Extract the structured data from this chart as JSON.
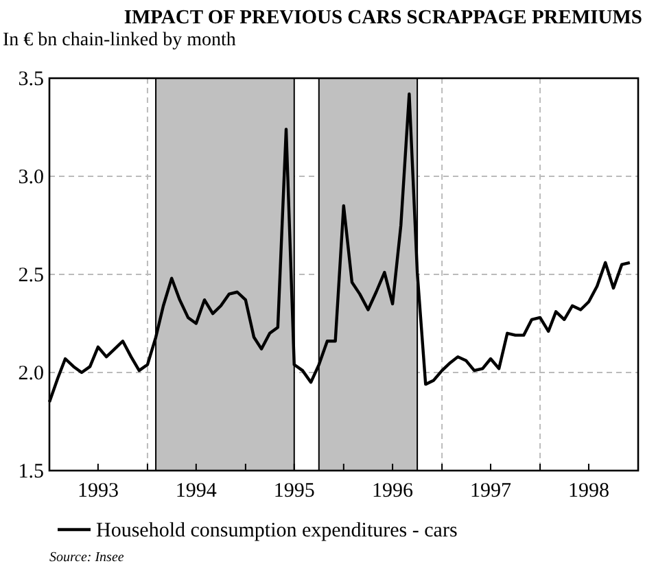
{
  "chart_data": {
    "type": "line",
    "title": "IMPACT OF PREVIOUS CARS SCRAPPAGE PREMIUMS",
    "subtitle": "In € bn chain-linked by month",
    "series": [
      {
        "name": "Household consumption expenditures - cars",
        "color": "#000000",
        "values": [
          1.85,
          1.97,
          2.07,
          2.03,
          2.0,
          2.03,
          2.13,
          2.08,
          2.12,
          2.16,
          2.08,
          2.01,
          2.04,
          2.18,
          2.34,
          2.48,
          2.37,
          2.28,
          2.25,
          2.37,
          2.3,
          2.34,
          2.4,
          2.41,
          2.37,
          2.18,
          2.12,
          2.2,
          2.23,
          3.24,
          2.04,
          2.01,
          1.95,
          2.04,
          2.16,
          2.16,
          2.85,
          2.46,
          2.4,
          2.32,
          2.41,
          2.51,
          2.35,
          2.75,
          3.42,
          2.51,
          1.94,
          1.96,
          2.01,
          2.05,
          2.08,
          2.06,
          2.01,
          2.02,
          2.07,
          2.02,
          2.2,
          2.19,
          2.19,
          2.27,
          2.28,
          2.21,
          2.31,
          2.27,
          2.34,
          2.32,
          2.36,
          2.44,
          2.56,
          2.43,
          2.55,
          2.56
        ]
      }
    ],
    "x": [
      "1993-01",
      "1993-02",
      "1993-03",
      "1993-04",
      "1993-05",
      "1993-06",
      "1993-07",
      "1993-08",
      "1993-09",
      "1993-10",
      "1993-11",
      "1993-12",
      "1994-01",
      "1994-02",
      "1994-03",
      "1994-04",
      "1994-05",
      "1994-06",
      "1994-07",
      "1994-08",
      "1994-09",
      "1994-10",
      "1994-11",
      "1994-12",
      "1995-01",
      "1995-02",
      "1995-03",
      "1995-04",
      "1995-05",
      "1995-06",
      "1995-07",
      "1995-08",
      "1995-09",
      "1995-10",
      "1995-11",
      "1995-12",
      "1996-01",
      "1996-02",
      "1996-03",
      "1996-04",
      "1996-05",
      "1996-06",
      "1996-07",
      "1996-08",
      "1996-09",
      "1996-10",
      "1996-11",
      "1996-12",
      "1997-01",
      "1997-02",
      "1997-03",
      "1997-04",
      "1997-05",
      "1997-06",
      "1997-07",
      "1997-08",
      "1997-09",
      "1997-10",
      "1997-11",
      "1997-12",
      "1998-01",
      "1998-02",
      "1998-03",
      "1998-04",
      "1998-05",
      "1998-06",
      "1998-07",
      "1998-08",
      "1998-09",
      "1998-10",
      "1998-11",
      "1998-12"
    ],
    "xlim": [
      "1993-01",
      "1999-01"
    ],
    "xticks": [
      {
        "value": "1993-01",
        "label": null
      },
      {
        "value": "1993-07",
        "label": "1993"
      },
      {
        "value": "1994-01",
        "label": null
      },
      {
        "value": "1994-07",
        "label": "1994"
      },
      {
        "value": "1995-01",
        "label": null
      },
      {
        "value": "1995-07",
        "label": "1995"
      },
      {
        "value": "1996-01",
        "label": null
      },
      {
        "value": "1996-07",
        "label": "1996"
      },
      {
        "value": "1997-01",
        "label": null
      },
      {
        "value": "1997-07",
        "label": "1997"
      },
      {
        "value": "1998-01",
        "label": null
      },
      {
        "value": "1998-07",
        "label": "1998"
      },
      {
        "value": "1999-01",
        "label": null
      }
    ],
    "ylim": [
      1.5,
      3.5
    ],
    "yticks": [
      {
        "value": 1.5,
        "label": "1.5"
      },
      {
        "value": 2,
        "label": "2.0"
      },
      {
        "value": 2.5,
        "label": "2.5"
      },
      {
        "value": 3,
        "label": "3.0"
      },
      {
        "value": 3.5,
        "label": "3.5"
      }
    ],
    "bands": [
      {
        "axis": "x",
        "from": "1994-02",
        "to": "1995-07",
        "color": "#c0c0c0"
      },
      {
        "axis": "x",
        "from": "1995-10",
        "to": "1996-10",
        "color": "#c0c0c0"
      }
    ],
    "grid": true,
    "legend": "bottom",
    "line_style": "solid",
    "marker": "none",
    "annotations": [
      "Source: Insee"
    ]
  }
}
